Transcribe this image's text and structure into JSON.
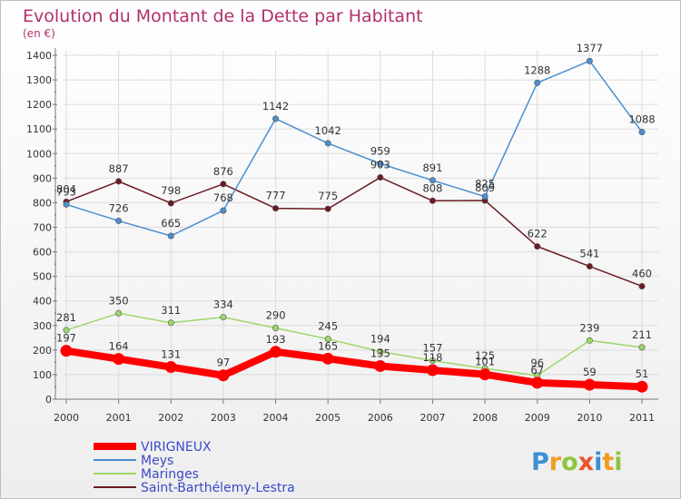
{
  "chart_data": {
    "type": "line",
    "title": "Evolution du Montant de la Dette par Habitant",
    "subtitle": "(en €)",
    "xlabel": "",
    "ylabel": "",
    "x": [
      "2000",
      "2001",
      "2002",
      "2003",
      "2004",
      "2005",
      "2006",
      "2007",
      "2008",
      "2009",
      "2010",
      "2011"
    ],
    "ylim": [
      0,
      1400
    ],
    "yticks": [
      0,
      100,
      200,
      300,
      400,
      500,
      600,
      700,
      800,
      900,
      1000,
      1100,
      1200,
      1300,
      1400
    ],
    "grid": true,
    "legend_position": "bottom-left",
    "series": [
      {
        "name": "Saint-Barthélemy-Lestra",
        "color": "#6b1b23",
        "values": [
          804,
          887,
          798,
          876,
          777,
          775,
          903,
          808,
          809,
          622,
          541,
          460
        ]
      },
      {
        "name": "Meys",
        "color": "#4a8fcf",
        "values": [
          793,
          726,
          665,
          768,
          1142,
          1042,
          959,
          891,
          825,
          1288,
          1377,
          1088
        ]
      },
      {
        "name": "Maringes",
        "color": "#9dd76a",
        "values": [
          281,
          350,
          311,
          334,
          290,
          245,
          194,
          157,
          125,
          96,
          239,
          211
        ]
      },
      {
        "name": "VIRIGNEUX",
        "color": "#ff0000",
        "values": [
          197,
          164,
          131,
          97,
          193,
          165,
          135,
          118,
          101,
          67,
          59,
          51
        ]
      }
    ],
    "legend_order": [
      "VIRIGNEUX",
      "Meys",
      "Maringes",
      "Saint-Barthélemy-Lestra"
    ]
  },
  "logo": {
    "text": "Proxiti",
    "colors": [
      "#3b8fd4",
      "#f29b1d",
      "#8cc63f",
      "#e9542b",
      "#3b8fd4",
      "#f29b1d",
      "#8cc63f"
    ]
  }
}
